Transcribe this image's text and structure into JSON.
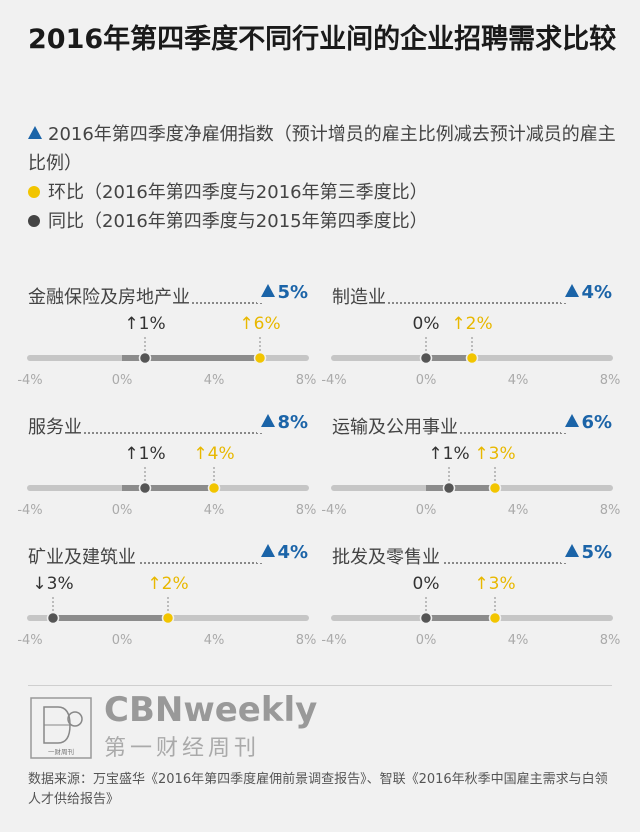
{
  "title": "2016年第四季度不同行业间的企业招聘需求比较",
  "legend": {
    "triangle": "2016年第四季度净雇佣指数（预计增员的雇主比例减去预计减员的雇主比例）",
    "yellow": "环比（2016年第四季度与2016年第三季度比）",
    "gray": "同比（2016年第四季度与2015年第四季度比）"
  },
  "colors": {
    "blue": "#1b64a8",
    "yellow": "#f2c500",
    "gray": "#555555"
  },
  "chart_data": {
    "type": "scatter",
    "xlim": [
      -4,
      8
    ],
    "ticks": [
      -4,
      0,
      4,
      8
    ],
    "tick_labels": [
      "-4%",
      "0%",
      "4%",
      "8%"
    ],
    "panels": [
      {
        "name": "金融保险及房地产业",
        "index": "5%",
        "yoy": 1,
        "qoq": 6,
        "yoy_label": "↑1%",
        "qoq_label": "↑6%"
      },
      {
        "name": "制造业",
        "index": "4%",
        "yoy": 0,
        "qoq": 2,
        "yoy_label": "0%",
        "qoq_label": "↑2%"
      },
      {
        "name": "服务业",
        "index": "8%",
        "yoy": 1,
        "qoq": 4,
        "yoy_label": "↑1%",
        "qoq_label": "↑4%"
      },
      {
        "name": "运输及公用事业",
        "index": "6%",
        "yoy": 1,
        "qoq": 3,
        "yoy_label": "↑1%",
        "qoq_label": "↑3%"
      },
      {
        "name": "矿业及建筑业",
        "index": "4%",
        "yoy": -3,
        "qoq": 2,
        "yoy_label": "↓3%",
        "qoq_label": "↑2%"
      },
      {
        "name": "批发及零售业",
        "index": "5%",
        "yoy": 0,
        "qoq": 3,
        "yoy_label": "0%",
        "qoq_label": "↑3%"
      }
    ]
  },
  "brand": {
    "name": "CBNweekly",
    "sub": "第一财经周刊",
    "logo_text": "一财周刊"
  },
  "source": "数据来源：万宝盛华《2016年第四季度雇佣前景调查报告》、智联《2016年秋季中国雇主需求与白领人才供给报告》"
}
